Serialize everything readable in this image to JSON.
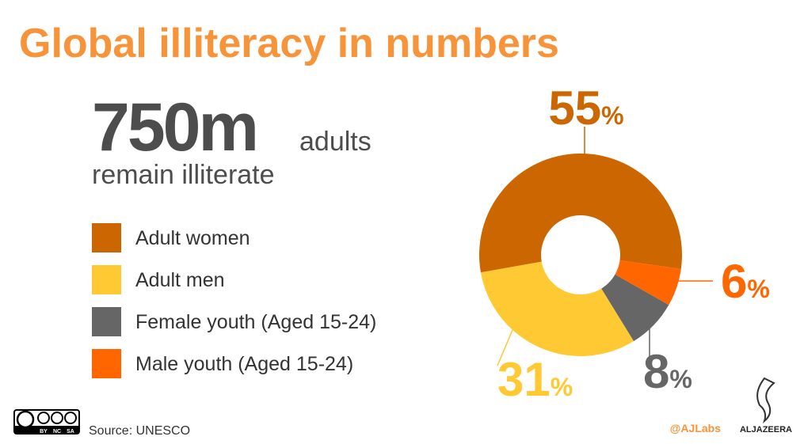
{
  "chart_data": {
    "type": "pie",
    "title": "Global illiteracy in numbers",
    "headline": {
      "number": "750m",
      "unit": "adults",
      "text": "remain illiterate"
    },
    "categories": [
      "Adult women",
      "Adult men",
      "Female youth (Aged 15-24)",
      "Male youth (Aged 15-24)"
    ],
    "values": [
      55,
      31,
      8,
      6
    ],
    "value_labels": [
      "55%",
      "31%",
      "8%",
      "6%"
    ],
    "colors": [
      "#cc6600",
      "#ffc933",
      "#666666",
      "#ff6600"
    ],
    "source": "Source: UNESCO",
    "license": [
      "BY",
      "NC",
      "SA"
    ],
    "credit": "@AJLabs",
    "brand": "ALJAZEERA"
  }
}
